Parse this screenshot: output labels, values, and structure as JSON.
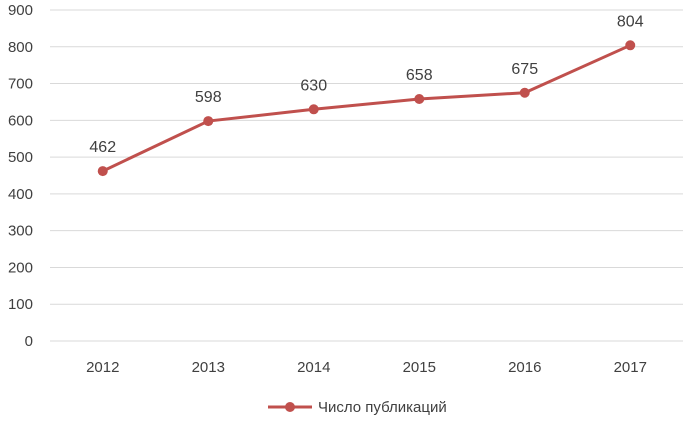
{
  "chart_data": {
    "type": "line",
    "categories": [
      "2012",
      "2013",
      "2014",
      "2015",
      "2016",
      "2017"
    ],
    "series": [
      {
        "name": "Число публикаций",
        "values": [
          462,
          598,
          630,
          658,
          675,
          804
        ],
        "color": "#c0504d"
      }
    ],
    "data_labels": [
      "462",
      "598",
      "630",
      "658",
      "675",
      "804"
    ],
    "ylim": [
      0,
      900
    ],
    "yticks": [
      0,
      100,
      200,
      300,
      400,
      500,
      600,
      700,
      800,
      900
    ],
    "grid": true,
    "legend_position": "bottom",
    "title": "",
    "xlabel": "",
    "ylabel": ""
  }
}
